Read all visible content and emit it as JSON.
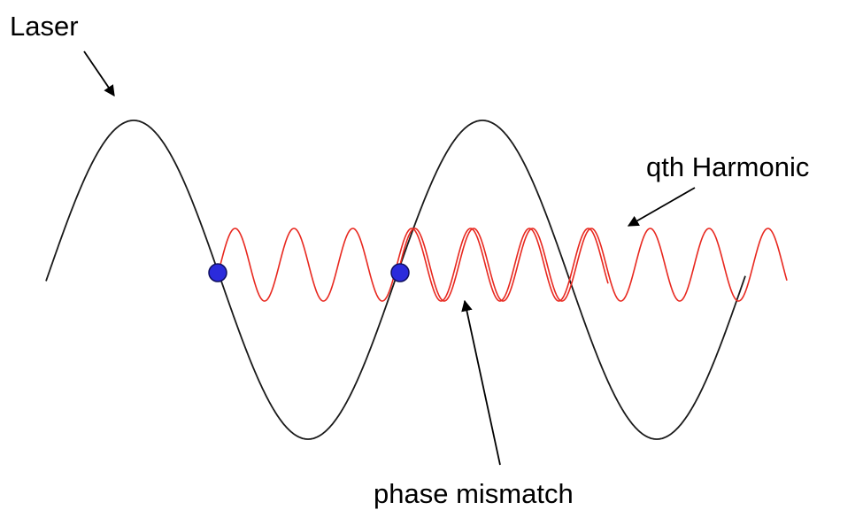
{
  "labels": {
    "laser": "Laser",
    "harmonic": "qth Harmonic",
    "mismatch": "phase mismatch"
  },
  "colors": {
    "laser_wave": "#1a1a1a",
    "harmonic_wave": "#e8281f",
    "marker_fill": "#2b2bdc",
    "marker_stroke": "#101060",
    "arrow": "#000000"
  },
  "icons": {
    "arrowheads": "triangle-arrowhead",
    "markers": "filled-circle"
  }
}
